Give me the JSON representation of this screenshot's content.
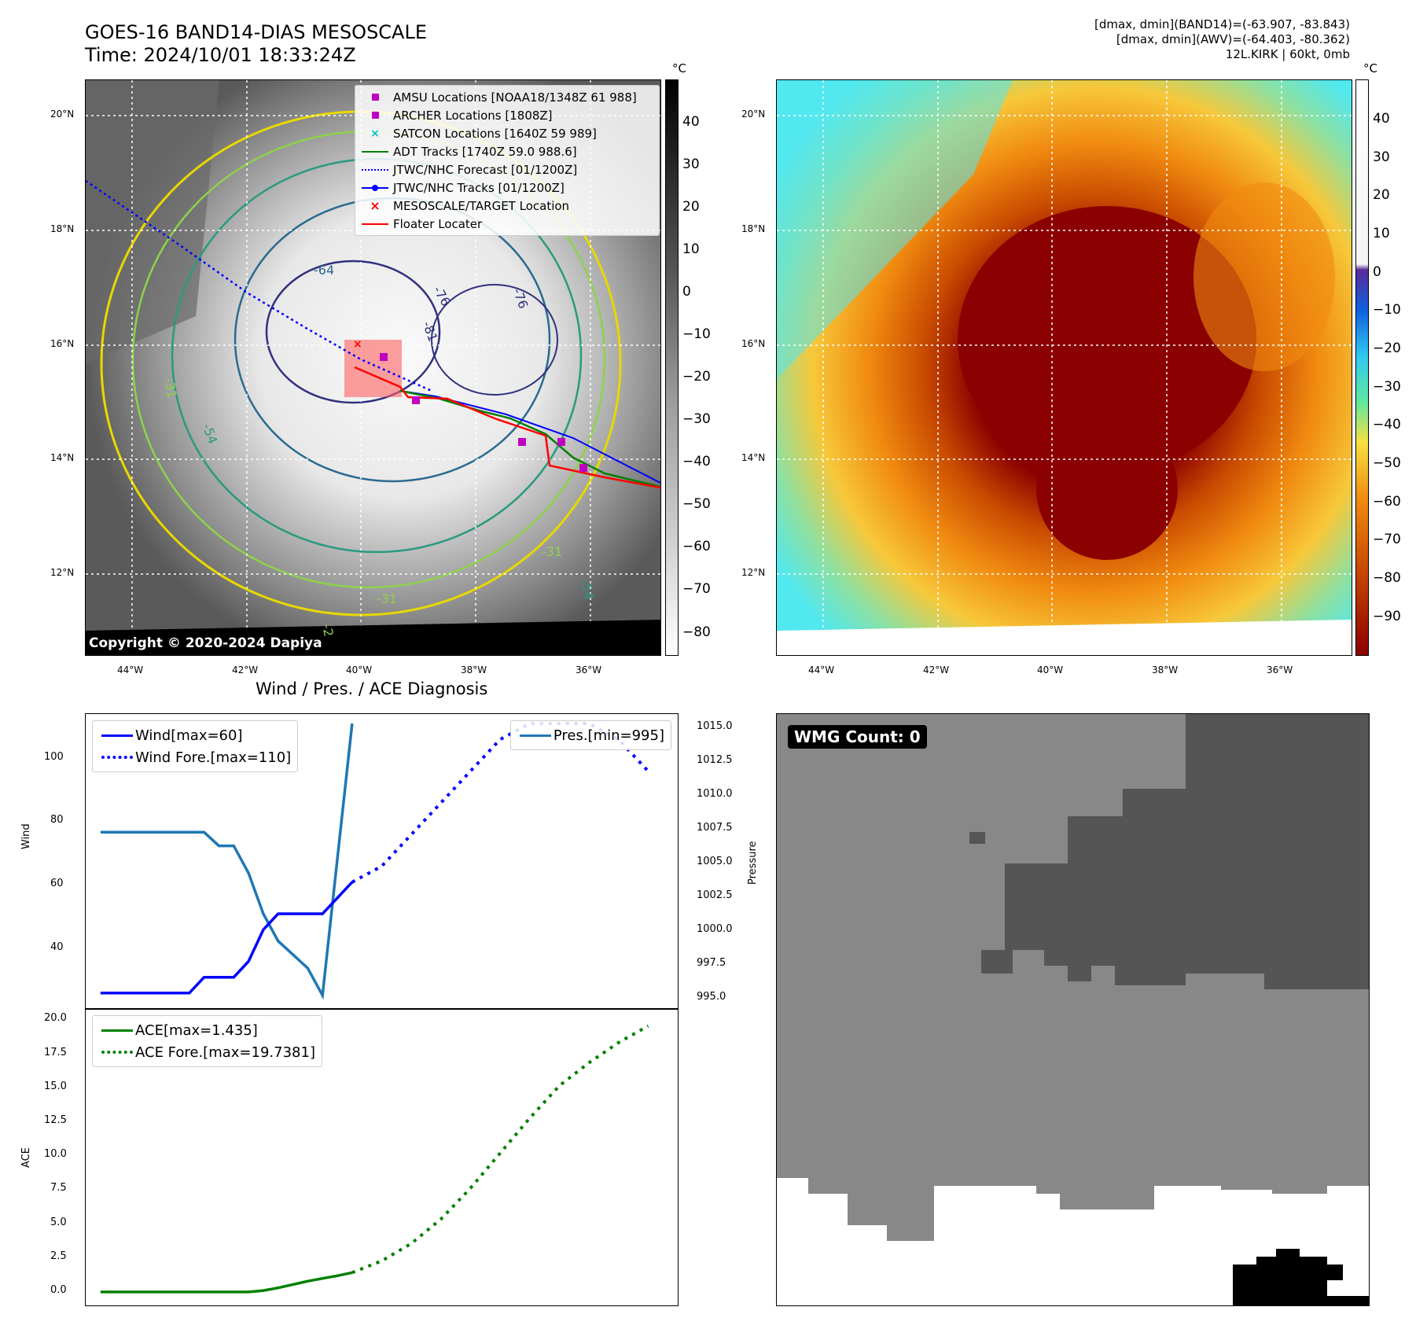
{
  "header": {
    "title_line1": "GOES-16 BAND14-DIAS MESOSCALE",
    "title_line2": "Time: 2024/10/01 18:33:24Z",
    "info_line1": "[dmax, dmin](BAND14)=(-63.907, -83.843)",
    "info_line2": "[dmax, dmin](AWV)=(-64.403, -80.362)",
    "info_line3": "12L.KIRK | 60kt, 0mb"
  },
  "ir_panel": {
    "lon_ticks": [
      "44°W",
      "42°W",
      "40°W",
      "38°W",
      "36°W"
    ],
    "lat_ticks": [
      "20°N",
      "18°N",
      "16°N",
      "14°N",
      "12°N"
    ],
    "contour_labels": [
      "-64",
      "-76",
      "-81",
      "-76",
      "-31",
      "-54",
      "-54",
      "-31",
      "-31",
      "-2"
    ],
    "copyright": "Copyright © 2020-2024 Dapiya",
    "colorbar_unit": "°C",
    "colorbar_ticks": [
      "40",
      "30",
      "20",
      "10",
      "0",
      "−10",
      "−20",
      "−30",
      "−40",
      "−50",
      "−60",
      "−70",
      "−80"
    ],
    "legend": [
      {
        "label": "AMSU Locations [NOAA18/1348Z 61 988]",
        "symbol": "square",
        "color": "#c000c0"
      },
      {
        "label": "ARCHER Locations [1808Z]",
        "symbol": "square",
        "color": "#c000c0"
      },
      {
        "label": "SATCON Locations [1640Z 59 989]",
        "symbol": "x",
        "color": "#00c0c0"
      },
      {
        "label": "ADT Tracks [1740Z 59.0 988.6]",
        "symbol": "line",
        "color": "#008000"
      },
      {
        "label": "JTWC/NHC Forecast [01/1200Z]",
        "symbol": "dotted",
        "color": "#0000ff"
      },
      {
        "label": "JTWC/NHC Tracks [01/1200Z]",
        "symbol": "line-dot",
        "color": "#0000ff"
      },
      {
        "label": "MESOSCALE/TARGET Location",
        "symbol": "x",
        "color": "#ff0000"
      },
      {
        "label": "Floater Locater",
        "symbol": "line",
        "color": "#ff0000"
      }
    ]
  },
  "awv_panel": {
    "lon_ticks": [
      "44°W",
      "42°W",
      "40°W",
      "38°W",
      "36°W"
    ],
    "lat_ticks": [
      "20°N",
      "18°N",
      "16°N",
      "14°N",
      "12°N"
    ],
    "colorbar_unit": "°C",
    "colorbar_ticks": [
      "40",
      "30",
      "20",
      "10",
      "0",
      "−10",
      "−20",
      "−30",
      "−40",
      "−50",
      "−60",
      "−70",
      "−80",
      "−90"
    ]
  },
  "wind_panel": {
    "title": "Wind / Pres. / ACE Diagnosis",
    "ylabel_left": "Wind",
    "ylabel_right": "Pressure",
    "left_ticks": [
      "100",
      "80",
      "60",
      "40"
    ],
    "right_ticks": [
      "1015.0",
      "1012.5",
      "1010.0",
      "1007.5",
      "1005.0",
      "1002.5",
      "1000.0",
      "997.5",
      "995.0"
    ],
    "legend_left": [
      {
        "label": "Wind[max=60]",
        "style": "solid",
        "color": "#0000ff"
      },
      {
        "label": "Wind Fore.[max=110]",
        "style": "dotted",
        "color": "#0000ff"
      }
    ],
    "legend_right": [
      {
        "label": "Pres.[min=995]",
        "style": "solid",
        "color": "#1f77b4"
      }
    ]
  },
  "ace_panel": {
    "ylabel": "ACE",
    "ticks": [
      "20.0",
      "17.5",
      "15.0",
      "12.5",
      "10.0",
      "7.5",
      "5.0",
      "2.5",
      "0.0"
    ],
    "legend": [
      {
        "label": "ACE[max=1.435]",
        "style": "solid",
        "color": "#008000"
      },
      {
        "label": "ACE Fore.[max=19.7381]",
        "style": "dotted",
        "color": "#008000"
      }
    ]
  },
  "wmg_panel": {
    "badge": "WMG Count: 0"
  },
  "chart_data": [
    {
      "type": "line",
      "ylabel": "Wind",
      "ylim": [
        20,
        113
      ],
      "series": [
        {
          "name": "Wind[max=60]",
          "x": [
            0,
            1,
            2,
            3,
            4,
            5,
            6,
            7,
            8,
            9,
            10,
            11,
            12,
            13,
            14,
            15,
            16,
            17
          ],
          "values": [
            25,
            25,
            25,
            25,
            25,
            25,
            25,
            30,
            30,
            30,
            35,
            45,
            50,
            50,
            50,
            50,
            55,
            60
          ]
        },
        {
          "name": "Wind Fore.[max=110]",
          "x": [
            17,
            19,
            21,
            23,
            25,
            27,
            29,
            31,
            33,
            35,
            37
          ],
          "values": [
            60,
            65,
            75,
            85,
            95,
            105,
            110,
            110,
            110,
            105,
            95
          ]
        }
      ]
    },
    {
      "type": "line",
      "ylabel": "Pressure",
      "ylim": [
        994,
        1015.7
      ],
      "series": [
        {
          "name": "Pres.[min=995]",
          "x": [
            0,
            1,
            2,
            3,
            4,
            5,
            6,
            7,
            8,
            9,
            10,
            11,
            12,
            13,
            14,
            15,
            16,
            17
          ],
          "values": [
            1007,
            1007,
            1007,
            1007,
            1007,
            1007,
            1007,
            1007,
            1006,
            1006,
            1004,
            1001,
            999,
            998,
            997,
            995,
            1005,
            1015
          ]
        }
      ]
    },
    {
      "type": "line",
      "ylabel": "ACE",
      "ylim": [
        -1,
        21
      ],
      "series": [
        {
          "name": "ACE[max=1.435]",
          "x": [
            0,
            1,
            2,
            3,
            4,
            5,
            6,
            7,
            8,
            9,
            10,
            11,
            12,
            13,
            14,
            15,
            16,
            17
          ],
          "values": [
            0,
            0,
            0,
            0,
            0,
            0,
            0,
            0,
            0,
            0,
            0,
            0.1,
            0.3,
            0.55,
            0.8,
            1.0,
            1.2,
            1.435
          ]
        },
        {
          "name": "ACE Fore.[max=19.7381]",
          "x": [
            17,
            19,
            21,
            23,
            25,
            27,
            29,
            31,
            33,
            35,
            37
          ],
          "values": [
            1.435,
            2.3,
            3.6,
            5.4,
            7.7,
            10.3,
            12.9,
            15.3,
            17.0,
            18.5,
            19.74
          ]
        }
      ]
    }
  ],
  "colors": {
    "ir_background": "#c8c8c8",
    "awv_land_dark": "#8b0000",
    "wmg_gray": "#888888",
    "wmg_dark": "#555555"
  }
}
